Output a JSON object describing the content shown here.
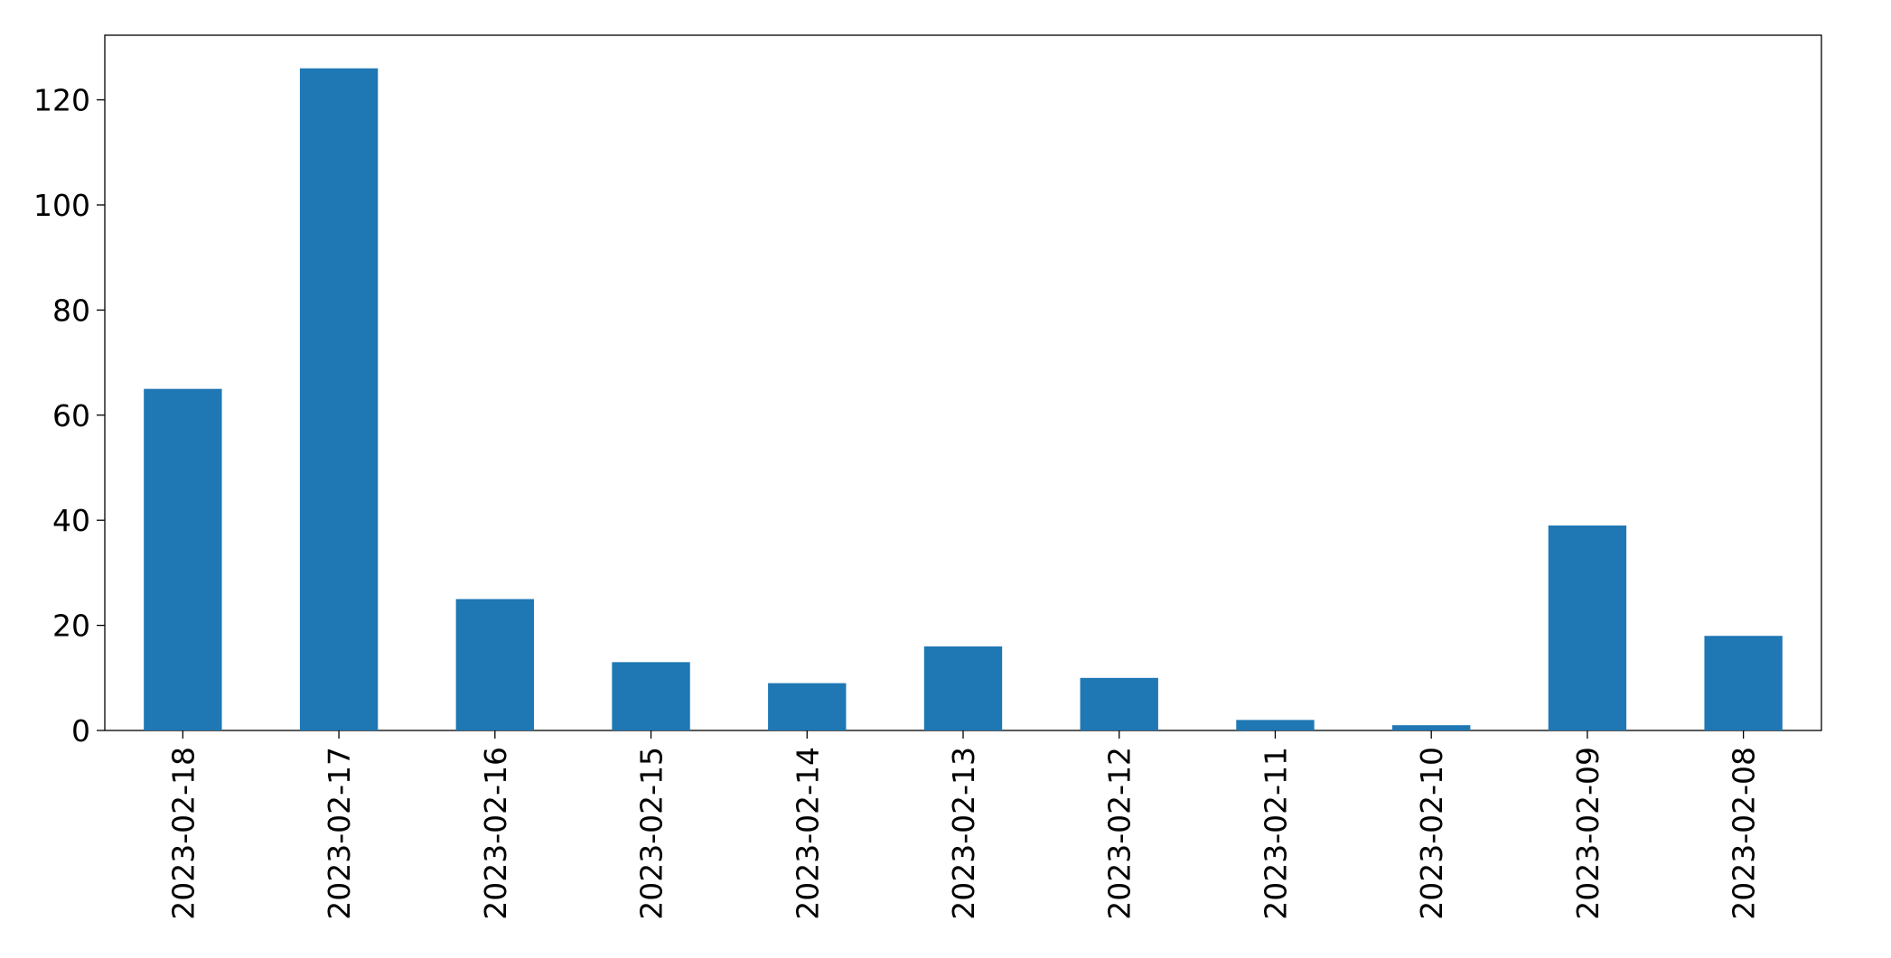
{
  "chart_data": {
    "type": "bar",
    "categories": [
      "2023-02-18",
      "2023-02-17",
      "2023-02-16",
      "2023-02-15",
      "2023-02-14",
      "2023-02-13",
      "2023-02-12",
      "2023-02-11",
      "2023-02-10",
      "2023-02-09",
      "2023-02-08"
    ],
    "values": [
      65,
      126,
      25,
      13,
      9,
      16,
      10,
      2,
      1,
      39,
      18
    ],
    "color": "#1f77b4",
    "ylim": [
      0,
      132.3
    ],
    "yticks": [
      0,
      20,
      40,
      60,
      80,
      100,
      120
    ],
    "grid": false
  }
}
